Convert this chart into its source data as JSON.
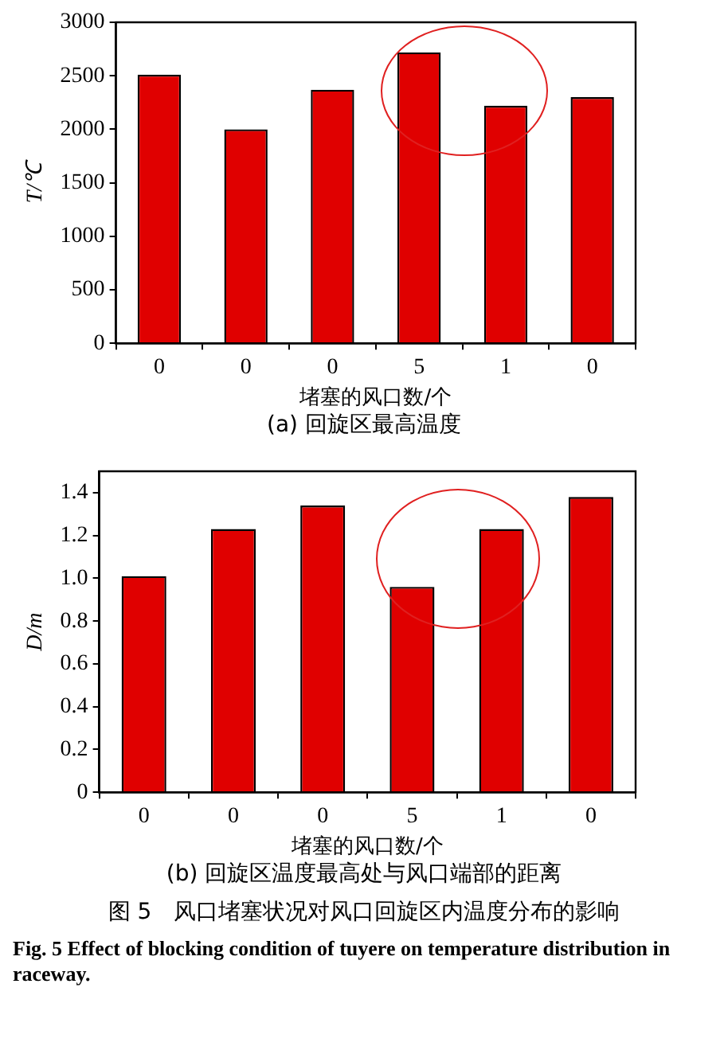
{
  "chart_data": [
    {
      "type": "bar",
      "categories": [
        "0",
        "0",
        "0",
        "5",
        "1",
        "0"
      ],
      "values": [
        2510,
        2000,
        2370,
        2720,
        2220,
        2300
      ],
      "color": "#e00000",
      "ylim": [
        0,
        3000
      ],
      "yticks": [
        0,
        500,
        1000,
        1500,
        2000,
        2500,
        3000
      ],
      "xlabel": "堵塞的风口数/个",
      "ylabel": "T/℃",
      "grid": false,
      "legend": false,
      "annotations": [
        "(a) 回旋区最高温度"
      ]
    },
    {
      "type": "bar",
      "categories": [
        "0",
        "0",
        "0",
        "5",
        "1",
        "0"
      ],
      "values": [
        1.01,
        1.23,
        1.34,
        0.96,
        1.23,
        1.38
      ],
      "color": "#e00000",
      "ylim": [
        0,
        1.5
      ],
      "yticks": [
        0,
        0.2,
        0.4,
        0.6,
        0.8,
        {
          "value": 1,
          "label": "1.0"
        },
        1.2,
        1.4
      ],
      "xlabel": "堵塞的风口数/个",
      "ylabel": "D/m",
      "grid": false,
      "legend": false,
      "annotations": [
        "(b) 回旋区温度最高处与风口端部的距离",
        "图 5　风口堵塞状况对风口回旋区内温度分布的影响",
        "Fig. 5 Effect of blocking condition of tuyere on temperature distribution in raceway."
      ]
    }
  ]
}
